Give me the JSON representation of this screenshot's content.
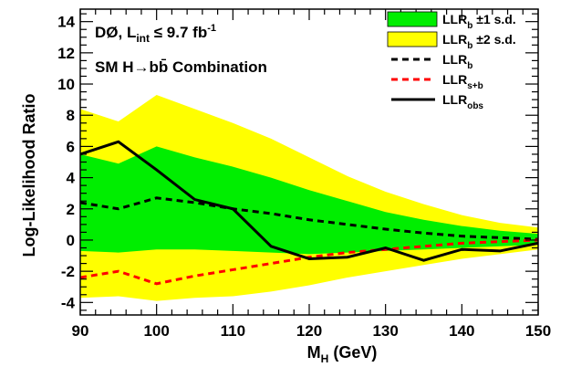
{
  "chart_data": {
    "type": "line",
    "title": "",
    "xlabel": "M",
    "xlabel_sub": "H",
    "xlabel_unit": "(GeV)",
    "ylabel": "Log-Likelihood Ratio",
    "xlim": [
      90,
      150
    ],
    "ylim": [
      -4.8,
      14.8
    ],
    "xticks": [
      90,
      100,
      110,
      120,
      130,
      140,
      150
    ],
    "yticks": [
      -4,
      -2,
      0,
      2,
      4,
      6,
      8,
      10,
      12,
      14
    ],
    "grid": false,
    "legend_position": "top-right",
    "annotations": {
      "experiment": "DØ, L",
      "lumi_sub": "int",
      "lumi_value": "≤ 9.7 fb",
      "lumi_sup": "-1",
      "combination": "SM H→bb̄ Combination"
    },
    "x": [
      90,
      95,
      100,
      105,
      110,
      115,
      120,
      125,
      130,
      135,
      140,
      145,
      150
    ],
    "bands": {
      "two_sigma_upper": [
        8.4,
        7.6,
        9.3,
        8.4,
        7.5,
        6.5,
        5.3,
        4.1,
        3.1,
        2.3,
        1.6,
        1.1,
        0.8
      ],
      "one_sigma_upper": [
        5.5,
        4.9,
        6.0,
        5.3,
        4.7,
        4.0,
        3.2,
        2.5,
        1.8,
        1.3,
        0.9,
        0.6,
        0.4
      ],
      "one_sigma_lower": [
        -0.7,
        -0.8,
        -0.6,
        -0.6,
        -0.7,
        -0.8,
        -0.9,
        -0.8,
        -0.7,
        -0.6,
        -0.5,
        -0.4,
        -0.3
      ],
      "two_sigma_lower": [
        -3.7,
        -3.6,
        -3.9,
        -3.7,
        -3.6,
        -3.3,
        -2.9,
        -2.4,
        -2.0,
        -1.6,
        -1.2,
        -0.9,
        -0.6
      ]
    },
    "series": [
      {
        "name": "LLR",
        "sub": "b",
        "style": "dashed",
        "color": "#000000",
        "values": [
          2.4,
          2.0,
          2.7,
          2.4,
          2.0,
          1.7,
          1.3,
          1.0,
          0.7,
          0.45,
          0.25,
          0.15,
          0.05
        ]
      },
      {
        "name": "LLR",
        "sub": "s+b",
        "style": "dashed",
        "color": "#ff0000",
        "values": [
          -2.4,
          -2.0,
          -2.8,
          -2.3,
          -1.9,
          -1.5,
          -1.1,
          -0.8,
          -0.6,
          -0.4,
          -0.2,
          -0.1,
          0.0
        ]
      },
      {
        "name": "LLR",
        "sub": "obs",
        "style": "solid",
        "color": "#000000",
        "values": [
          5.5,
          6.3,
          4.5,
          2.6,
          2.0,
          -0.4,
          -1.2,
          -1.1,
          -0.5,
          -1.3,
          -0.6,
          -0.7,
          -0.2
        ]
      }
    ],
    "legend": [
      {
        "kind": "fill",
        "color": "#00ee00",
        "label": "LLR",
        "sub": "b",
        "suffix": "±1 s.d."
      },
      {
        "kind": "fill",
        "color": "#ffff00",
        "label": "LLR",
        "sub": "b",
        "suffix": "±2 s.d."
      },
      {
        "kind": "line",
        "series_index": 0
      },
      {
        "kind": "line",
        "series_index": 1
      },
      {
        "kind": "line",
        "series_index": 2
      }
    ],
    "colors": {
      "one_sigma": "#00ee00",
      "two_sigma": "#ffff00",
      "background": "#ffffff",
      "frame": "#000000"
    }
  }
}
